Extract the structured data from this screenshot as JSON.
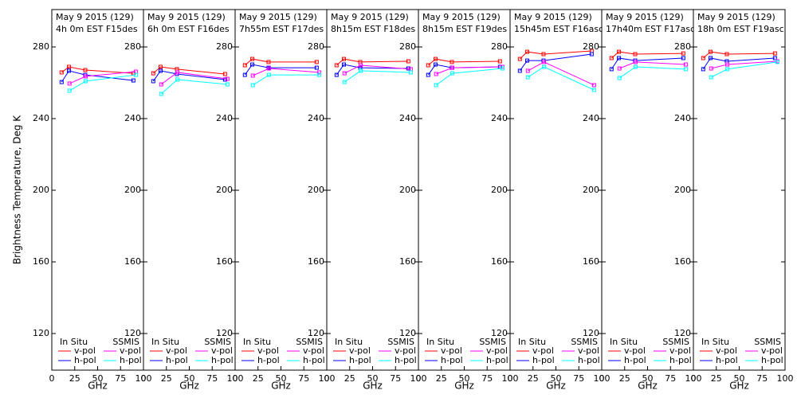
{
  "chart_data": [
    {
      "type": "line",
      "title": "May 9 2015 (129)",
      "subtitle": "4h 0m  EST F15des",
      "xlabel": "GHz",
      "ylabel": "Brightness Temperature, Deg K",
      "xlim": [
        0,
        100
      ],
      "xticks": [
        0,
        25,
        50,
        75,
        100
      ],
      "ylim": [
        100,
        300
      ],
      "yticks": [
        120,
        160,
        200,
        240,
        280
      ],
      "groups": [
        {
          "name": "In Situ",
          "x": [
            10.7,
            18.7,
            36.5,
            89
          ],
          "series": [
            {
              "name": "v-pol",
              "color": "#ff0000",
              "values": [
                265.8,
                268.9,
                267.1,
                265.3
              ]
            },
            {
              "name": "h-pol",
              "color": "#0000ff",
              "values": [
                260.4,
                266.7,
                264.4,
                261.3
              ]
            }
          ]
        },
        {
          "name": "SSMIS",
          "x": [
            19.35,
            37,
            91.65
          ],
          "series": [
            {
              "name": "v-pol",
              "color": "#ff00ff",
              "values": [
                259.6,
                263.6,
                266.2
              ]
            },
            {
              "name": "h-pol",
              "color": "#00ffff",
              "values": [
                255.6,
                260.9,
                264.4
              ]
            }
          ]
        }
      ]
    },
    {
      "type": "line",
      "title": "May 9 2015 (129)",
      "subtitle": "6h 0m  EST F16des",
      "xlabel": "GHz",
      "xlim": [
        0,
        100
      ],
      "xticks": [
        0,
        25,
        50,
        75,
        100
      ],
      "ylim": [
        100,
        300
      ],
      "yticks": [
        120,
        160,
        200,
        240,
        280
      ],
      "groups": [
        {
          "name": "In Situ",
          "x": [
            10.7,
            18.7,
            36.5,
            89
          ],
          "series": [
            {
              "name": "v-pol",
              "color": "#ff0000",
              "values": [
                265.3,
                268.9,
                267.6,
                264.9
              ]
            },
            {
              "name": "h-pol",
              "color": "#0000ff",
              "values": [
                260.9,
                266.7,
                264.9,
                261.8
              ]
            }
          ]
        },
        {
          "name": "SSMIS",
          "x": [
            19.35,
            37,
            91.65
          ],
          "series": [
            {
              "name": "v-pol",
              "color": "#ff00ff",
              "values": [
                259.1,
                265.8,
                262.2
              ]
            },
            {
              "name": "h-pol",
              "color": "#00ffff",
              "values": [
                253.8,
                261.8,
                259.1
              ]
            }
          ]
        }
      ]
    },
    {
      "type": "line",
      "title": "May 9 2015 (129)",
      "subtitle": "7h55m  EST F17des",
      "xlabel": "GHz",
      "xlim": [
        0,
        100
      ],
      "xticks": [
        0,
        25,
        50,
        75,
        100
      ],
      "ylim": [
        100,
        300
      ],
      "yticks": [
        120,
        160,
        200,
        240,
        280
      ],
      "groups": [
        {
          "name": "In Situ",
          "x": [
            10.7,
            18.7,
            36.5,
            89
          ],
          "series": [
            {
              "name": "v-pol",
              "color": "#ff0000",
              "values": [
                269.8,
                273.3,
                271.6,
                271.6
              ]
            },
            {
              "name": "h-pol",
              "color": "#0000ff",
              "values": [
                264.4,
                270.2,
                268.4,
                268.4
              ]
            }
          ]
        },
        {
          "name": "SSMIS",
          "x": [
            19.35,
            37,
            91.65
          ],
          "series": [
            {
              "name": "v-pol",
              "color": "#ff00ff",
              "values": [
                264,
                268,
                265.8
              ]
            },
            {
              "name": "h-pol",
              "color": "#00ffff",
              "values": [
                258.7,
                264.4,
                264.4
              ]
            }
          ]
        }
      ]
    },
    {
      "type": "line",
      "title": "May 9 2015 (129)",
      "subtitle": "8h15m  EST F18des",
      "xlabel": "GHz",
      "xlim": [
        0,
        100
      ],
      "xticks": [
        0,
        25,
        50,
        75,
        100
      ],
      "ylim": [
        100,
        300
      ],
      "yticks": [
        120,
        160,
        200,
        240,
        280
      ],
      "groups": [
        {
          "name": "In Situ",
          "x": [
            10.7,
            18.7,
            36.5,
            89
          ],
          "series": [
            {
              "name": "v-pol",
              "color": "#ff0000",
              "values": [
                269.8,
                273.3,
                271.6,
                272
              ]
            },
            {
              "name": "h-pol",
              "color": "#0000ff",
              "values": [
                264.4,
                270.2,
                268.4,
                268
              ]
            }
          ]
        },
        {
          "name": "SSMIS",
          "x": [
            19.35,
            37,
            91.65
          ],
          "series": [
            {
              "name": "v-pol",
              "color": "#ff00ff",
              "values": [
                265.3,
                269.8,
                267.6
              ]
            },
            {
              "name": "h-pol",
              "color": "#00ffff",
              "values": [
                260.4,
                266.7,
                265.8
              ]
            }
          ]
        }
      ]
    },
    {
      "type": "line",
      "title": "May 9 2015 (129)",
      "subtitle": "8h15m  EST F19des",
      "xlabel": "GHz",
      "xlim": [
        0,
        100
      ],
      "xticks": [
        0,
        25,
        50,
        75,
        100
      ],
      "ylim": [
        100,
        300
      ],
      "yticks": [
        120,
        160,
        200,
        240,
        280
      ],
      "groups": [
        {
          "name": "In Situ",
          "x": [
            10.7,
            18.7,
            36.5,
            89
          ],
          "series": [
            {
              "name": "v-pol",
              "color": "#ff0000",
              "values": [
                269.8,
                273.3,
                271.6,
                272
              ]
            },
            {
              "name": "h-pol",
              "color": "#0000ff",
              "values": [
                264.4,
                270.2,
                268.4,
                268.9
              ]
            }
          ]
        },
        {
          "name": "SSMIS",
          "x": [
            19.35,
            37,
            91.65
          ],
          "series": [
            {
              "name": "v-pol",
              "color": "#ff00ff",
              "values": [
                264.9,
                268.4,
                268.9
              ]
            },
            {
              "name": "h-pol",
              "color": "#00ffff",
              "values": [
                258.7,
                265.3,
                268
              ]
            }
          ]
        }
      ]
    },
    {
      "type": "line",
      "title": "May 9 2015 (129)",
      "subtitle": "15h45m  EST F16asc",
      "xlabel": "GHz",
      "xlim": [
        0,
        100
      ],
      "xticks": [
        0,
        25,
        50,
        75,
        100
      ],
      "ylim": [
        100,
        300
      ],
      "yticks": [
        120,
        160,
        200,
        240,
        280
      ],
      "groups": [
        {
          "name": "In Situ",
          "x": [
            10.7,
            18.7,
            36.5,
            89
          ],
          "series": [
            {
              "name": "v-pol",
              "color": "#ff0000",
              "values": [
                273.3,
                277.3,
                276,
                277.8
              ]
            },
            {
              "name": "h-pol",
              "color": "#0000ff",
              "values": [
                266.7,
                272.4,
                272.4,
                276
              ]
            }
          ]
        },
        {
          "name": "SSMIS",
          "x": [
            19.35,
            37,
            91.65
          ],
          "series": [
            {
              "name": "v-pol",
              "color": "#ff00ff",
              "values": [
                266.7,
                271.6,
                258.7
              ]
            },
            {
              "name": "h-pol",
              "color": "#00ffff",
              "values": [
                263.1,
                268.9,
                256
              ]
            }
          ]
        }
      ]
    },
    {
      "type": "line",
      "title": "May 9 2015 (129)",
      "subtitle": "17h40m  EST F17asc",
      "xlabel": "GHz",
      "xlim": [
        0,
        100
      ],
      "xticks": [
        0,
        25,
        50,
        75,
        100
      ],
      "ylim": [
        100,
        300
      ],
      "yticks": [
        120,
        160,
        200,
        240,
        280
      ],
      "groups": [
        {
          "name": "In Situ",
          "x": [
            10.7,
            18.7,
            36.5,
            89
          ],
          "series": [
            {
              "name": "v-pol",
              "color": "#ff0000",
              "values": [
                273.8,
                277.3,
                276,
                276.4
              ]
            },
            {
              "name": "h-pol",
              "color": "#0000ff",
              "values": [
                267.6,
                273.8,
                272.4,
                273.8
              ]
            }
          ]
        },
        {
          "name": "SSMIS",
          "x": [
            19.35,
            37,
            91.65
          ],
          "series": [
            {
              "name": "v-pol",
              "color": "#ff00ff",
              "values": [
                268,
                271.6,
                270.2
              ]
            },
            {
              "name": "h-pol",
              "color": "#00ffff",
              "values": [
                262.7,
                268.9,
                267.6
              ]
            }
          ]
        }
      ]
    },
    {
      "type": "line",
      "title": "May 9 2015 (129)",
      "subtitle": "18h 0m  EST F19asc",
      "xlabel": "GHz",
      "xlim": [
        0,
        100
      ],
      "xticks": [
        0,
        25,
        50,
        75,
        100
      ],
      "ylim": [
        100,
        300
      ],
      "yticks": [
        120,
        160,
        200,
        240,
        280
      ],
      "groups": [
        {
          "name": "In Situ",
          "x": [
            10.7,
            18.7,
            36.5,
            89
          ],
          "series": [
            {
              "name": "v-pol",
              "color": "#ff0000",
              "values": [
                273.8,
                277.3,
                276,
                276.4
              ]
            },
            {
              "name": "h-pol",
              "color": "#0000ff",
              "values": [
                267.6,
                273.8,
                272,
                273.8
              ]
            }
          ]
        },
        {
          "name": "SSMIS",
          "x": [
            19.35,
            37,
            91.65
          ],
          "series": [
            {
              "name": "v-pol",
              "color": "#ff00ff",
              "values": [
                268,
                270.2,
                272
              ]
            },
            {
              "name": "h-pol",
              "color": "#00ffff",
              "values": [
                263.1,
                267.6,
                271.6
              ]
            }
          ]
        }
      ]
    }
  ]
}
